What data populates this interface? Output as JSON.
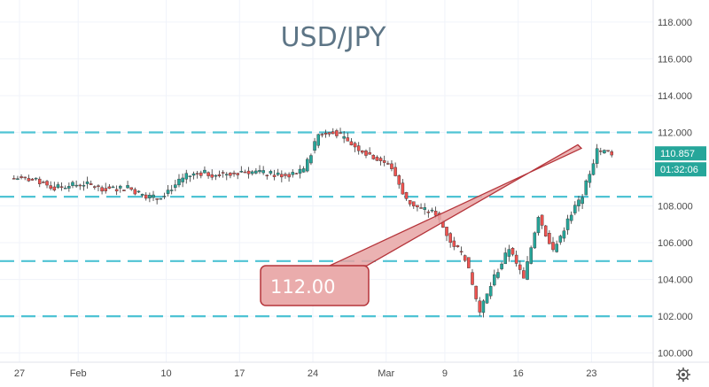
{
  "chart_data": {
    "type": "candlestick",
    "title": "USD/JPY",
    "symbol": "USD/JPY",
    "y_ticks": [
      "118.000",
      "116.000",
      "114.000",
      "112.000",
      "110.000",
      "108.000",
      "106.000",
      "104.000",
      "102.000",
      "100.000"
    ],
    "ylim": [
      99.5,
      119.2
    ],
    "x_ticks": [
      "27",
      "Feb",
      "10",
      "17",
      "24",
      "Mar",
      "9",
      "16",
      "23"
    ],
    "x_tick_index": [
      0,
      4,
      10,
      15,
      20,
      25,
      29,
      34,
      39
    ],
    "grid": true,
    "horizontal_levels": [
      112.0,
      108.5,
      105.0,
      102.0
    ],
    "level_color": "#4fc3d4",
    "up_color": "#26a69a",
    "down_color": "#ef5350",
    "last_price": "110.857",
    "countdown": "01:32:06",
    "annotation": {
      "text": "112.00",
      "points_to": 112.0
    },
    "daily_closes": [
      109.5,
      109.3,
      109.0,
      109.1,
      109.2,
      109.0,
      108.9,
      109.0,
      108.6,
      108.4,
      109.0,
      109.6,
      109.8,
      109.7,
      109.8,
      109.9,
      109.8,
      109.7,
      109.7,
      109.9,
      111.9,
      112.1,
      111.5,
      111.0,
      110.6,
      110.1,
      108.3,
      107.8,
      107.6,
      106.1,
      105.2,
      102.2,
      104.1,
      105.7,
      104.0,
      107.5,
      105.5,
      107.2,
      108.6,
      111.0,
      110.9
    ]
  }
}
